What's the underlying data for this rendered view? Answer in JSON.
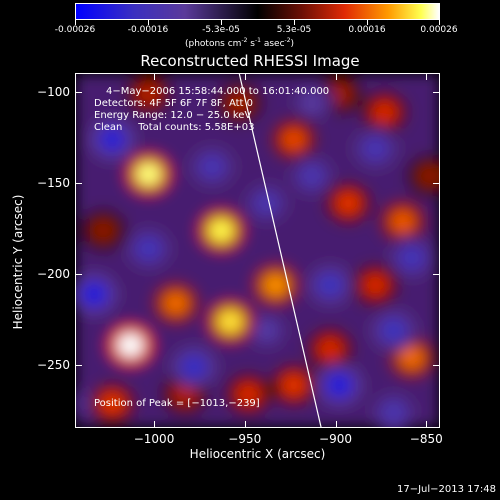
{
  "colorbar": {
    "tick_labels": [
      "-0.00026",
      "-0.00016",
      "-5.3e-05",
      "5.3e-05",
      "0.00016",
      "0.00026"
    ],
    "unit_label": "(photons cm",
    "unit_exp1": "-2",
    "unit_mid": " s",
    "unit_exp2": "-1",
    "unit_mid2": " asec",
    "unit_exp3": "-2",
    "unit_end": ")"
  },
  "chart_data": {
    "type": "heatmap",
    "title": "Reconstructed RHESSI Image",
    "xlabel": "Heliocentric X (arcsec)",
    "ylabel": "Heliocentric Y (arcsec)",
    "xlim": [
      -1043,
      -843
    ],
    "ylim": [
      -284,
      -90
    ],
    "x_ticks": [
      -1000,
      -950,
      -900,
      -850
    ],
    "x_tick_labels": [
      "−1000",
      "−950",
      "−900",
      "−850"
    ],
    "y_ticks": [
      -100,
      -150,
      -200,
      -250
    ],
    "y_tick_labels": [
      "−100",
      "−150",
      "−200",
      "−250"
    ],
    "colorbar_range": [
      -0.00026,
      0.00026
    ],
    "annotations": [
      "4−May−2006 15:58:44.000 to 16:01:40.000",
      "Detectors: 4F 5F 6F 7F 8F, Att 0",
      "Energy Range: 12.0 − 25.0 keV",
      "Clean     Total counts: 5.58E+03"
    ],
    "peak_label": "Position of Peak = [−1013,−239]",
    "peak_position": [
      -1013,
      -239
    ],
    "limb_line": [
      [
        -953,
        -90
      ],
      [
        -908,
        -284
      ]
    ],
    "sources": [
      {
        "x": -1013,
        "y": -239,
        "value": 0.00026
      },
      {
        "x": -1003,
        "y": -145,
        "value": 0.00024
      },
      {
        "x": -963,
        "y": -176,
        "value": 0.00023
      },
      {
        "x": -958,
        "y": -226,
        "value": 0.00022
      },
      {
        "x": -933,
        "y": -206,
        "value": 0.00018
      },
      {
        "x": -988,
        "y": -216,
        "value": 0.00016
      },
      {
        "x": -923,
        "y": -126,
        "value": 0.00014
      },
      {
        "x": -893,
        "y": -161,
        "value": 0.00013
      },
      {
        "x": -873,
        "y": -111,
        "value": 0.00012
      },
      {
        "x": -863,
        "y": -171,
        "value": 0.00015
      },
      {
        "x": -878,
        "y": -206,
        "value": 0.00012
      },
      {
        "x": -858,
        "y": -246,
        "value": 0.00016
      },
      {
        "x": -903,
        "y": -241,
        "value": 0.00012
      },
      {
        "x": -923,
        "y": -261,
        "value": 0.00013
      },
      {
        "x": -948,
        "y": -266,
        "value": 0.00012
      },
      {
        "x": -1023,
        "y": -271,
        "value": 0.00013
      },
      {
        "x": -983,
        "y": -266,
        "value": 0.0001
      },
      {
        "x": -1003,
        "y": -101,
        "value": 0.0001
      },
      {
        "x": -1028,
        "y": -176,
        "value": 8e-05
      },
      {
        "x": -953,
        "y": -106,
        "value": 9e-05
      },
      {
        "x": -898,
        "y": -101,
        "value": 9e-05
      },
      {
        "x": -848,
        "y": -146,
        "value": 8e-05
      },
      {
        "x": -1023,
        "y": -126,
        "value": -0.0002
      },
      {
        "x": -1033,
        "y": -211,
        "value": -0.00021
      },
      {
        "x": -1003,
        "y": -186,
        "value": -0.00016
      },
      {
        "x": -968,
        "y": -141,
        "value": -0.00015
      },
      {
        "x": -978,
        "y": -251,
        "value": -0.00018
      },
      {
        "x": -938,
        "y": -161,
        "value": -0.00014
      },
      {
        "x": -903,
        "y": -206,
        "value": -0.00017
      },
      {
        "x": -898,
        "y": -261,
        "value": -0.00021
      },
      {
        "x": -868,
        "y": -231,
        "value": -0.00017
      },
      {
        "x": -913,
        "y": -146,
        "value": -0.00014
      },
      {
        "x": -878,
        "y": -131,
        "value": -0.00015
      },
      {
        "x": -858,
        "y": -191,
        "value": -0.00016
      },
      {
        "x": -1033,
        "y": -271,
        "value": -0.00012
      },
      {
        "x": -938,
        "y": -231,
        "value": -0.00012
      },
      {
        "x": -913,
        "y": -106,
        "value": -0.00011
      },
      {
        "x": -868,
        "y": -276,
        "value": -0.00014
      }
    ]
  },
  "footer": {
    "timestamp": "17−Jul−2013 17:48"
  }
}
